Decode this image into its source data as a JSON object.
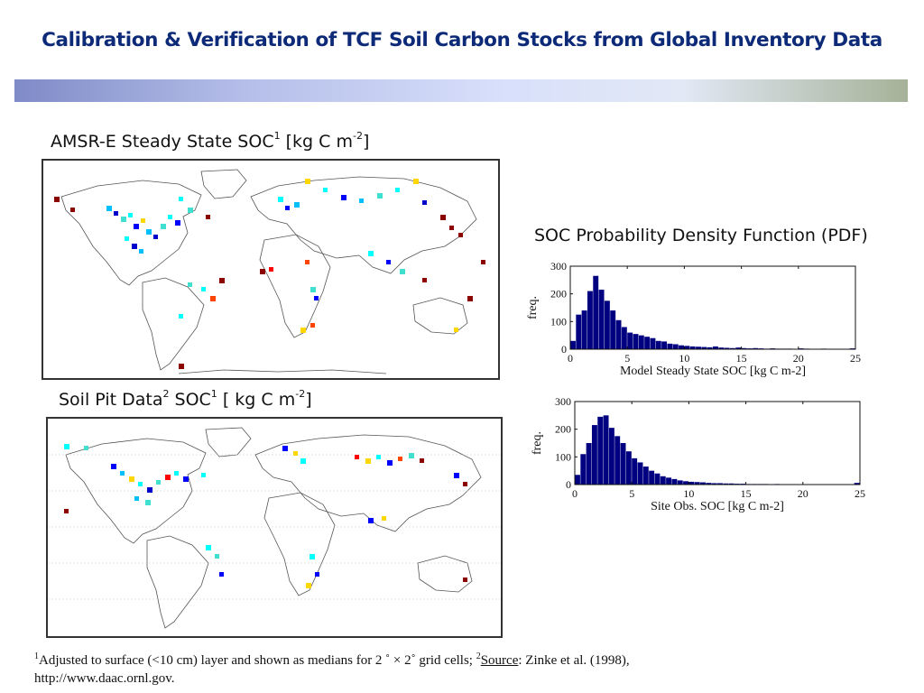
{
  "title": "Calibration & Verification of TCF Soil Carbon Stocks from Global Inventory Data",
  "map1": {
    "label_main": "AMSR-E Steady State SOC",
    "label_sup": "1",
    "label_units": " [kg C m",
    "label_exp": "-2",
    "label_end": "]"
  },
  "map2": {
    "label_main": "Soil Pit Data",
    "label_sup": "2",
    "label_mid": " SOC",
    "label_sup2": "1",
    "label_units": " [ kg C m",
    "label_exp": "-2",
    "label_end": "]"
  },
  "pdf_title": "SOC Probability Density Function (PDF)",
  "footnote": {
    "sup1": "1",
    "text1": "Adjusted to surface (<10 cm) layer and shown as medians for  2 ˚   ×  2˚   grid cells;  ",
    "sup2": "2",
    "source_label": "Source",
    "text2": ":  Zinke et al. (1998),",
    "url": "http://www.daac.ornl.gov."
  },
  "colors": {
    "title": "#0d2a78",
    "bars": "#000080"
  },
  "chart_data": [
    {
      "type": "bar",
      "title": "",
      "xlabel": "Model Steady State SOC [kg C m-2]",
      "ylabel": "freq.",
      "xlim": [
        0,
        25
      ],
      "ylim": [
        0,
        300
      ],
      "xticks": [
        0,
        5,
        10,
        15,
        20,
        25
      ],
      "yticks": [
        0,
        100,
        200,
        300
      ],
      "bin_width": 0.5,
      "bin_start": 0.25,
      "values": [
        30,
        125,
        140,
        210,
        265,
        215,
        175,
        140,
        105,
        80,
        60,
        55,
        50,
        45,
        40,
        30,
        28,
        20,
        18,
        14,
        12,
        10,
        9,
        8,
        7,
        10,
        6,
        5,
        4,
        6,
        4,
        3,
        4,
        3,
        2,
        3,
        2,
        2,
        2,
        1,
        3,
        2,
        1,
        1,
        2,
        1,
        1,
        1,
        1,
        3
      ]
    },
    {
      "type": "bar",
      "title": "",
      "xlabel": "Site Obs. SOC [kg C m-2]",
      "ylabel": "freq.",
      "xlim": [
        0,
        25
      ],
      "ylim": [
        0,
        300
      ],
      "xticks": [
        0,
        5,
        10,
        15,
        20,
        25
      ],
      "yticks": [
        0,
        100,
        200,
        300
      ],
      "bin_width": 0.5,
      "bin_start": 0.25,
      "values": [
        35,
        110,
        150,
        215,
        245,
        250,
        205,
        175,
        150,
        120,
        95,
        80,
        65,
        50,
        40,
        30,
        25,
        20,
        15,
        12,
        10,
        9,
        8,
        6,
        5,
        5,
        4,
        4,
        3,
        3,
        2,
        2,
        2,
        2,
        1,
        2,
        1,
        1,
        1,
        1,
        1,
        1,
        1,
        1,
        1,
        1,
        1,
        1,
        1,
        6
      ]
    }
  ]
}
